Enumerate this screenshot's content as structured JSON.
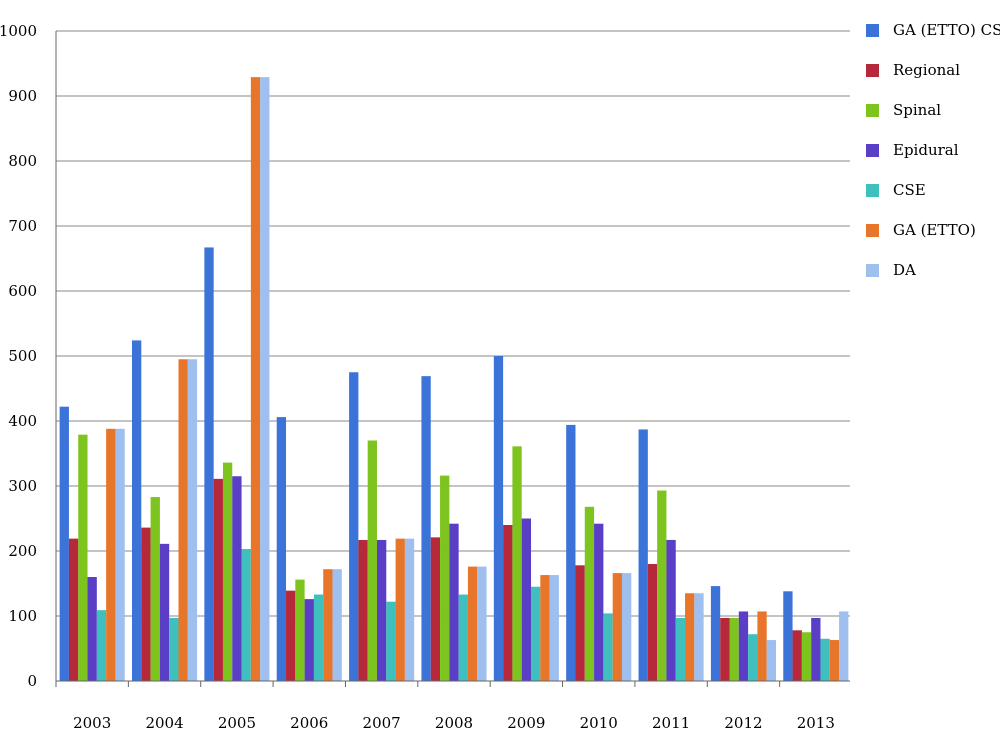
{
  "chart_data": {
    "type": "bar",
    "categories": [
      "2003",
      "2004",
      "2005",
      "2006",
      "2007",
      "2008",
      "2009",
      "2010",
      "2011",
      "2012",
      "2013"
    ],
    "series": [
      {
        "name": "GA (ETTO) CSE",
        "color": "#3b73d9",
        "values": [
          422,
          524,
          667,
          406,
          475,
          469,
          500,
          394,
          387,
          146,
          138
        ]
      },
      {
        "name": "Regional",
        "color": "#b5293b",
        "values": [
          219,
          236,
          311,
          139,
          217,
          221,
          240,
          178,
          180,
          97,
          78
        ]
      },
      {
        "name": "Spinal",
        "color": "#7ec41f",
        "values": [
          379,
          283,
          336,
          156,
          370,
          316,
          361,
          268,
          293,
          97,
          75
        ]
      },
      {
        "name": "Epidural",
        "color": "#5a3fc6",
        "values": [
          160,
          211,
          315,
          126,
          217,
          242,
          250,
          242,
          217,
          107,
          97
        ]
      },
      {
        "name": "CSE",
        "color": "#3fbfbd",
        "values": [
          109,
          97,
          203,
          133,
          122,
          133,
          145,
          104,
          97,
          72,
          65
        ]
      },
      {
        "name": "GA (ETTO)",
        "color": "#e8762a",
        "values": [
          388,
          495,
          929,
          172,
          219,
          176,
          163,
          166,
          135,
          107,
          63
        ]
      },
      {
        "name": "DA",
        "color": "#9fbfee",
        "values": [
          388,
          495,
          929,
          172,
          219,
          176,
          163,
          166,
          135,
          63,
          107
        ]
      }
    ],
    "yticks": [
      "0",
      "100",
      "200",
      "300",
      "400",
      "500",
      "600",
      "700",
      "800",
      "900",
      "1000"
    ],
    "ylim": [
      0,
      1000
    ],
    "grid": true,
    "legend": "right"
  }
}
